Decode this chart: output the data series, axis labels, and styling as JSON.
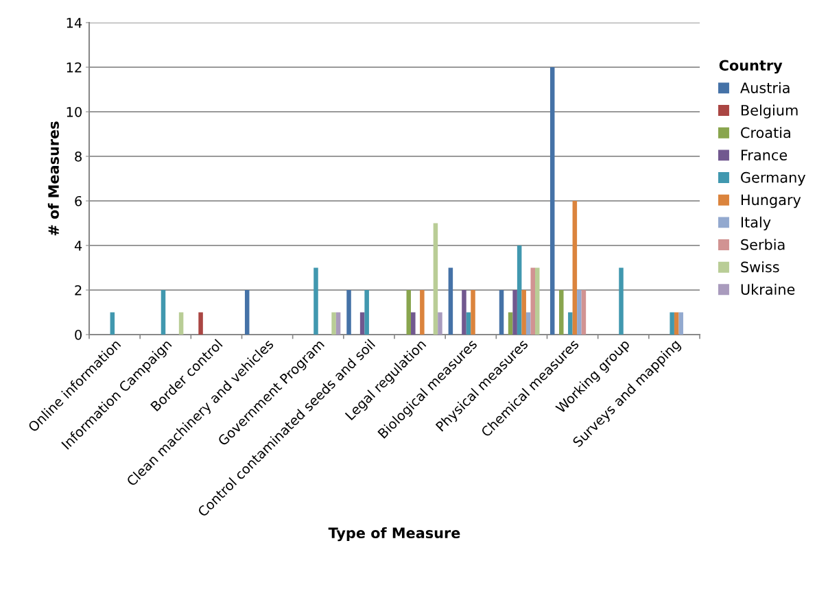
{
  "chart_data": {
    "type": "bar",
    "xlabel": "Type of Measure",
    "ylabel": "# of Measures",
    "legend_title": "Country",
    "categories": [
      "Online information",
      "Information Campaign",
      "Border control",
      "Clean machinery and vehicles",
      "Government Program",
      "Control contaminated seeds and soil",
      "Legal regulation",
      "Biological measures",
      "Physical measures",
      "Chemical measures",
      "Working group",
      "Surveys and mapping"
    ],
    "series": [
      {
        "name": "Austria",
        "color": "#4572a7",
        "values": [
          null,
          null,
          null,
          2,
          null,
          2,
          null,
          3,
          2,
          12,
          null,
          null
        ]
      },
      {
        "name": "Belgium",
        "color": "#aa4643",
        "values": [
          null,
          null,
          1,
          null,
          null,
          null,
          null,
          null,
          null,
          null,
          null,
          null
        ]
      },
      {
        "name": "Croatia",
        "color": "#89a54e",
        "values": [
          null,
          null,
          null,
          null,
          null,
          null,
          2,
          null,
          1,
          2,
          null,
          null
        ]
      },
      {
        "name": "France",
        "color": "#71588f",
        "values": [
          null,
          null,
          null,
          null,
          null,
          1,
          1,
          2,
          2,
          null,
          null,
          null
        ]
      },
      {
        "name": "Germany",
        "color": "#4198af",
        "values": [
          1,
          2,
          null,
          null,
          3,
          2,
          null,
          1,
          4,
          1,
          3,
          1
        ]
      },
      {
        "name": "Hungary",
        "color": "#db843d",
        "values": [
          null,
          null,
          null,
          null,
          null,
          null,
          2,
          2,
          2,
          6,
          null,
          1
        ]
      },
      {
        "name": "Italy",
        "color": "#93a9cf",
        "values": [
          null,
          null,
          null,
          null,
          null,
          null,
          null,
          null,
          1,
          2,
          null,
          1
        ]
      },
      {
        "name": "Serbia",
        "color": "#d19392",
        "values": [
          null,
          null,
          null,
          null,
          null,
          null,
          null,
          null,
          3,
          2,
          null,
          null
        ]
      },
      {
        "name": "Swiss",
        "color": "#b9cd96",
        "values": [
          null,
          1,
          null,
          null,
          1,
          null,
          5,
          null,
          3,
          null,
          null,
          null
        ]
      },
      {
        "name": "Ukraine",
        "color": "#a99bbd",
        "values": [
          null,
          null,
          null,
          null,
          1,
          null,
          1,
          null,
          null,
          null,
          null,
          null
        ]
      }
    ],
    "ylim": [
      0,
      14
    ],
    "yticks": [
      0,
      2,
      4,
      6,
      8,
      10,
      12,
      14
    ],
    "grid": "y",
    "legend": "right"
  }
}
